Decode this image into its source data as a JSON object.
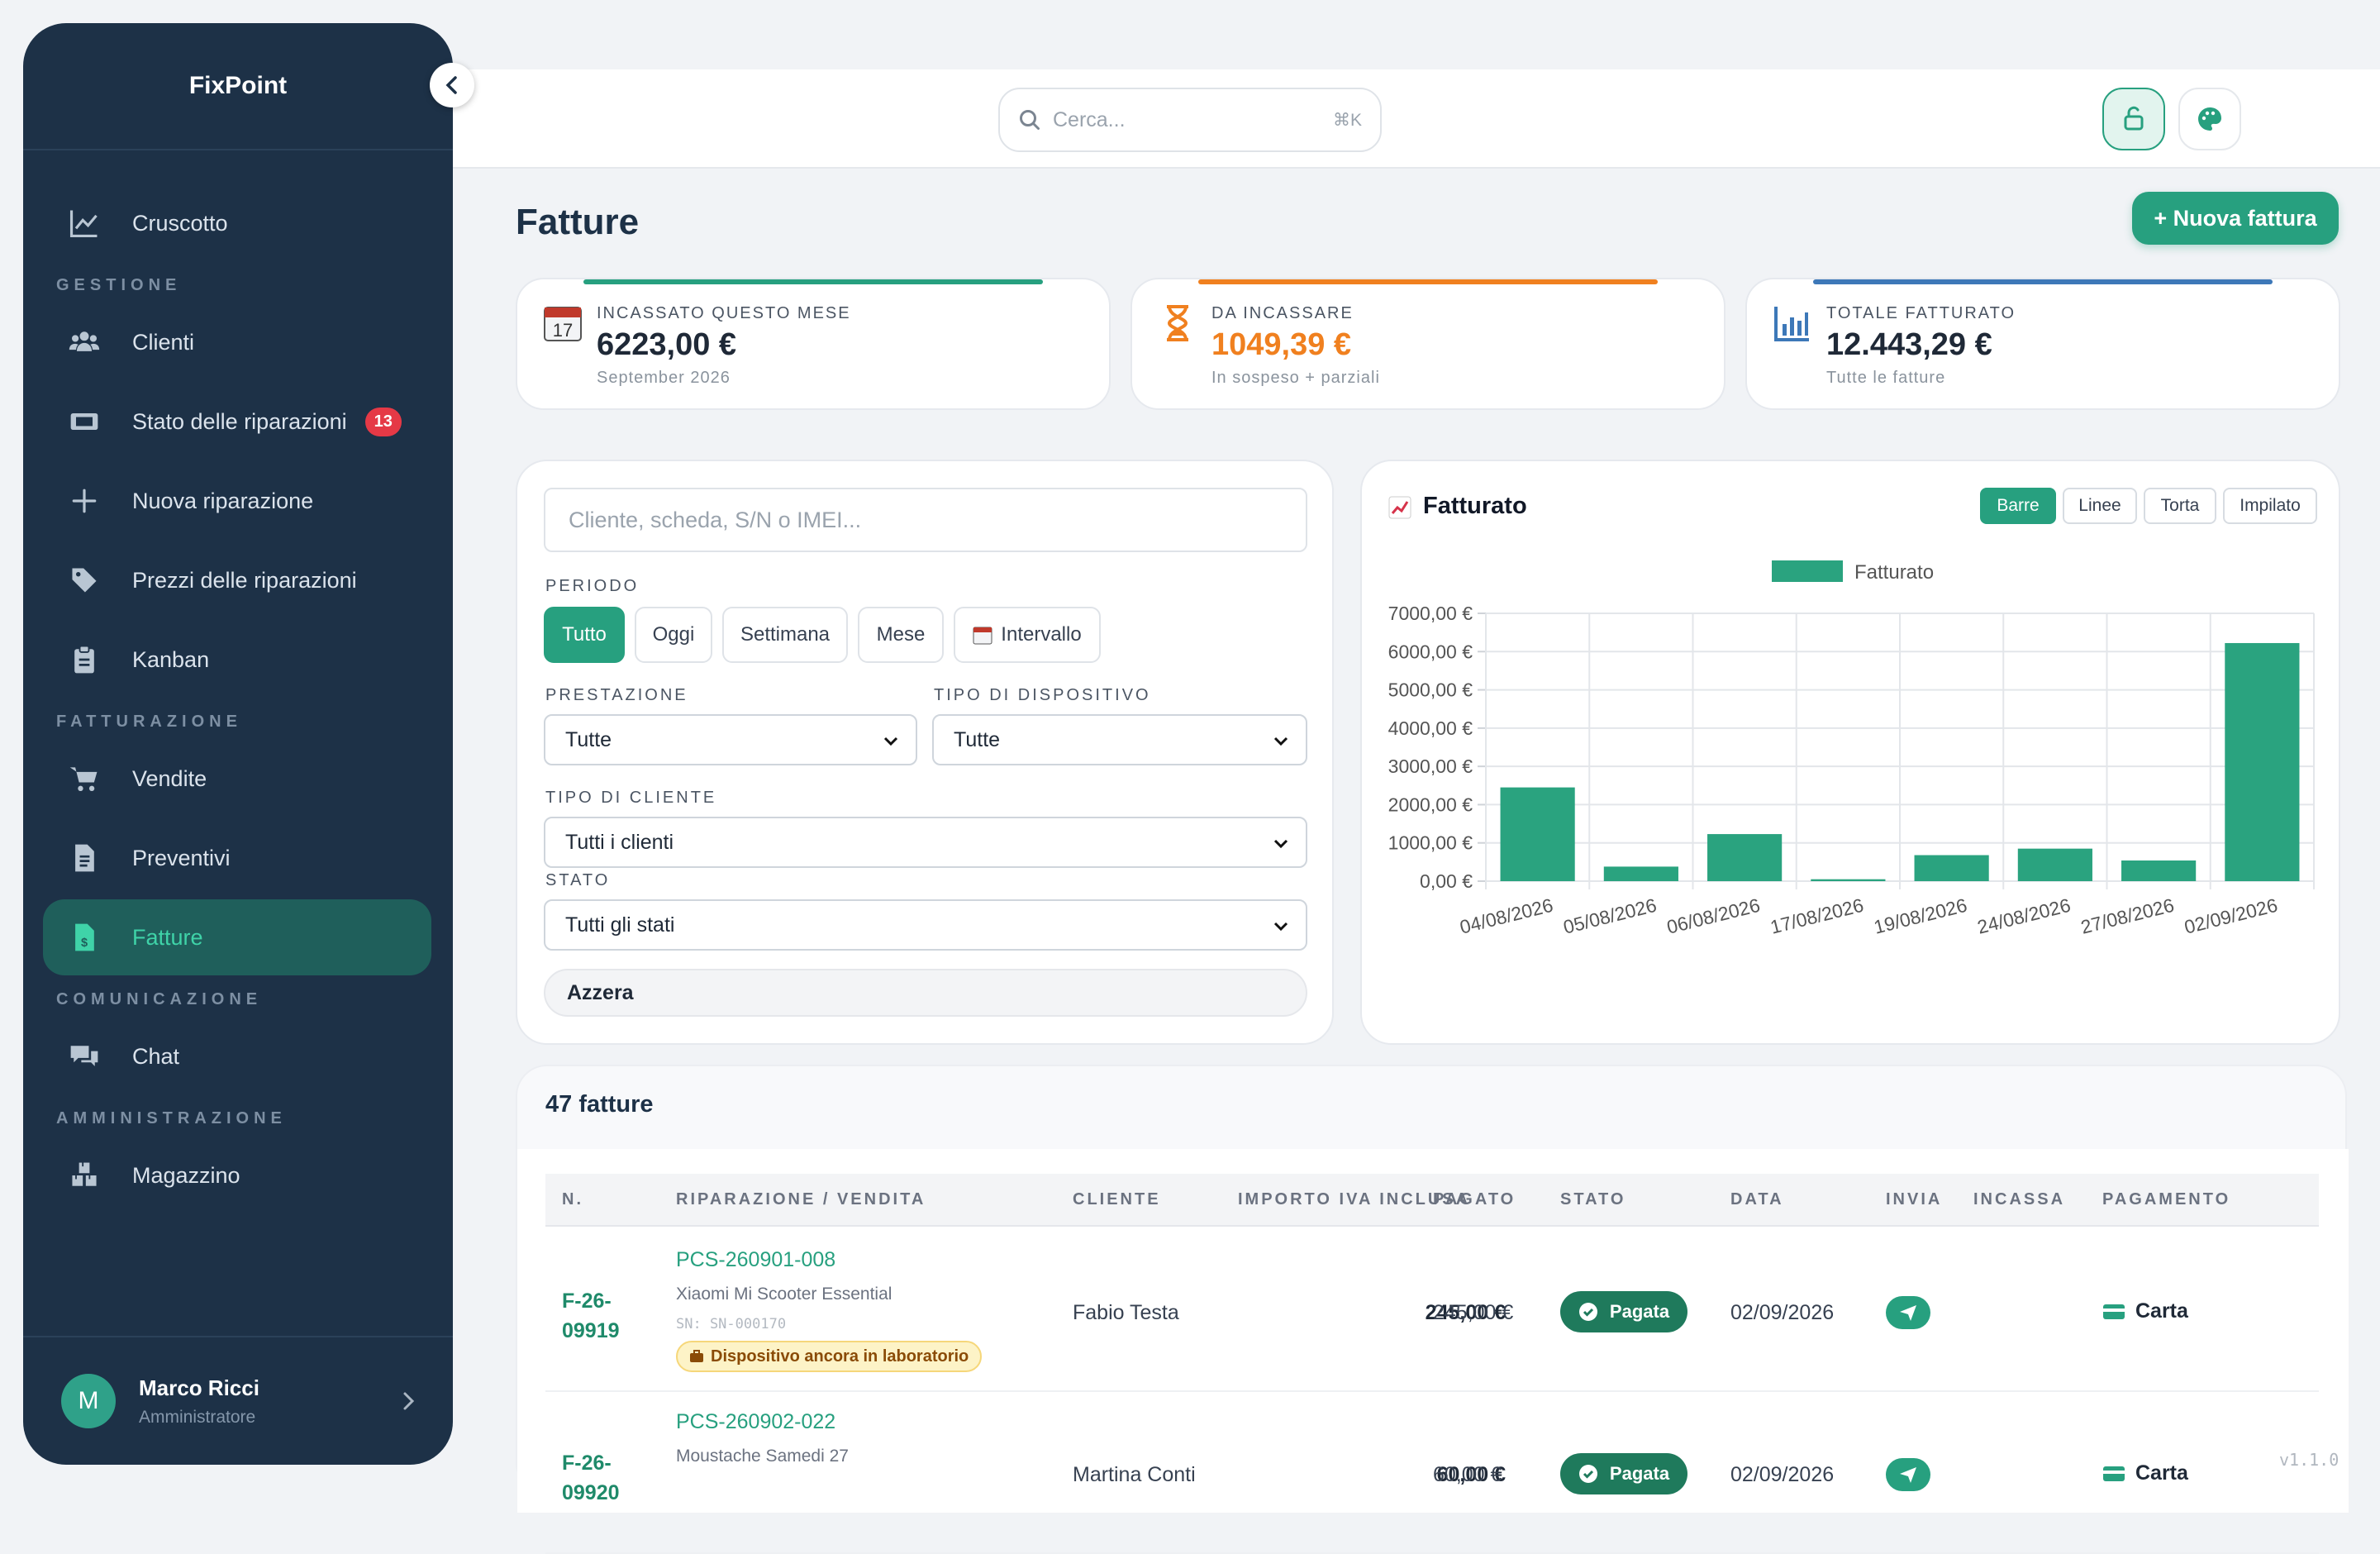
{
  "app": {
    "name": "FixPoint",
    "version": "v1.1.0"
  },
  "sidebar": {
    "items": [
      {
        "label": "Cruscotto",
        "icon": "chart-line-icon"
      },
      {
        "section": "GESTIONE"
      },
      {
        "label": "Clienti",
        "icon": "users-icon"
      },
      {
        "label": "Stato delle riparazioni",
        "icon": "ticket-icon",
        "badge": "13"
      },
      {
        "label": "Nuova riparazione",
        "icon": "plus-icon"
      },
      {
        "label": "Prezzi delle riparazioni",
        "icon": "tags-icon"
      },
      {
        "label": "Kanban",
        "icon": "clipboard-icon"
      },
      {
        "section": "FATTURAZIONE"
      },
      {
        "label": "Vendite",
        "icon": "cart-icon"
      },
      {
        "label": "Preventivi",
        "icon": "document-icon"
      },
      {
        "label": "Fatture",
        "icon": "invoice-icon",
        "active": true
      },
      {
        "section": "COMUNICAZIONE"
      },
      {
        "label": "Chat",
        "icon": "chat-icon"
      },
      {
        "section": "AMMINISTRAZIONE"
      },
      {
        "label": "Magazzino",
        "icon": "boxes-icon"
      }
    ],
    "user": {
      "initial": "M",
      "name": "Marco Ricci",
      "role": "Amministratore"
    }
  },
  "topbar": {
    "search_placeholder": "Cerca...",
    "search_shortcut": "⌘K"
  },
  "page": {
    "title": "Fatture",
    "new_button": "+ Nuova fattura"
  },
  "stats": [
    {
      "label": "INCASSATO QUESTO MESE",
      "value": "6223,00 €",
      "sub": "September 2026",
      "color": "#27a07f",
      "icon": "calendar-icon"
    },
    {
      "label": "DA INCASSARE",
      "value": "1049,39 €",
      "sub": "In sospeso + parziali",
      "color": "#f0801f",
      "icon": "hourglass-icon"
    },
    {
      "label": "TOTALE FATTURATO",
      "value": "12.443,29 €",
      "sub": "Tutte le fatture",
      "color": "#3d78b8",
      "icon": "bar-chart-icon"
    }
  ],
  "filters": {
    "search_placeholder": "Cliente, scheda, S/N o IMEI...",
    "period_label": "PERIODO",
    "periods": [
      "Tutto",
      "Oggi",
      "Settimana",
      "Mese",
      "Intervallo"
    ],
    "period_selected": "Tutto",
    "service_label": "PRESTAZIONE",
    "service_value": "Tutte",
    "device_label": "TIPO DI DISPOSITIVO",
    "device_value": "Tutte",
    "client_type_label": "TIPO DI CLIENTE",
    "client_type_value": "Tutti i clienti",
    "status_label": "STATO",
    "status_value": "Tutti gli stati",
    "reset_label": "Azzera"
  },
  "chart_panel": {
    "title": "Fatturato",
    "types": [
      "Barre",
      "Linee",
      "Torta",
      "Impilato"
    ],
    "type_selected": "Barre"
  },
  "chart_data": {
    "type": "bar",
    "title": "Fatturato",
    "categories": [
      "04/08/2026",
      "05/08/2026",
      "06/08/2026",
      "17/08/2026",
      "19/08/2026",
      "24/08/2026",
      "27/08/2026",
      "02/09/2026"
    ],
    "series": [
      {
        "name": "Fatturato",
        "values": [
          2450,
          380,
          1230,
          50,
          680,
          850,
          540,
          6223
        ],
        "color": "#2aa37f"
      }
    ],
    "yticks": [
      "0,00 €",
      "1000,00 €",
      "2000,00 €",
      "3000,00 €",
      "4000,00 €",
      "5000,00 €",
      "6000,00 €",
      "7000,00 €"
    ],
    "ylim": [
      0,
      7000
    ],
    "legend": "top",
    "grid": true
  },
  "invoices": {
    "count_label": "47 fatture",
    "columns": [
      "N.",
      "RIPARAZIONE / VENDITA",
      "CLIENTE",
      "IMPORTO IVA INCLUSA",
      "PAGATO",
      "STATO",
      "DATA",
      "INVIA",
      "INCASSA",
      "PAGAMENTO"
    ],
    "rows": [
      {
        "number": "F-26-\n09919",
        "ref": "PCS-260901-008",
        "device": "Xiaomi Mi Scooter Essential",
        "serial": "SN: SN-000170",
        "warning": "Dispositivo ancora in laboratorio",
        "client": "Fabio Testa",
        "amount": "245,00 €",
        "paid": "245,00 €",
        "status": "Pagata",
        "date": "02/09/2026",
        "payment": "Carta"
      },
      {
        "number": "F-26-\n09920",
        "ref": "PCS-260902-022",
        "device": "Moustache Samedi 27",
        "serial": "",
        "warning": "",
        "client": "Martina Conti",
        "amount": "60,00 €",
        "paid": "60,00 €",
        "status": "Pagata",
        "date": "02/09/2026",
        "payment": "Carta"
      }
    ]
  }
}
